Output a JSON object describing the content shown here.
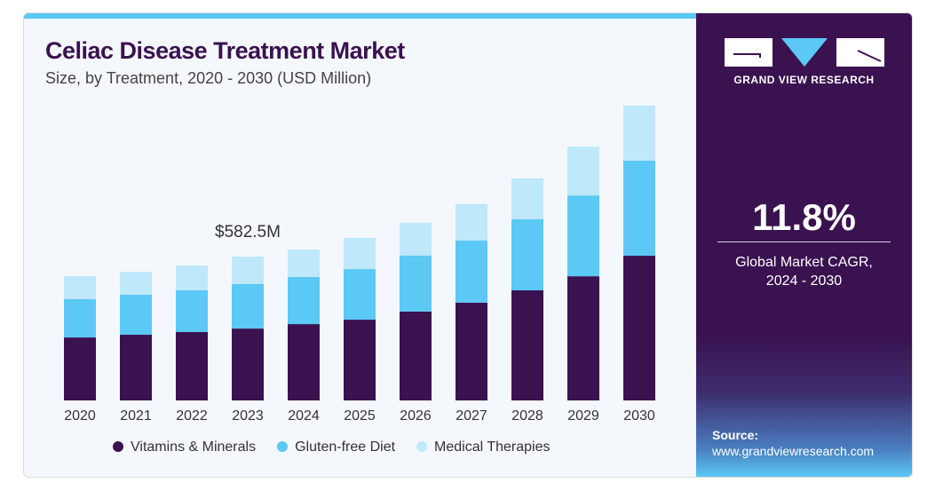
{
  "header": {
    "title": "Celiac Disease Treatment Market",
    "subtitle": "Size, by Treatment, 2020 - 2030 (USD Million)"
  },
  "side": {
    "brand": "GRAND VIEW RESEARCH",
    "cagr": "11.8%",
    "cagr_label_1": "Global Market CAGR,",
    "cagr_label_2": "2024 - 2030",
    "source_label": "Source:",
    "source_url": "www.grandviewresearch.com"
  },
  "colors": {
    "dark": "#3a1250",
    "mid": "#5bc8f5",
    "light": "#bfe8fb"
  },
  "chart_data": {
    "type": "bar",
    "stacked": true,
    "title": "Celiac Disease Treatment Market",
    "subtitle": "Size, by Treatment, 2020 - 2030 (USD Million)",
    "categories": [
      "2020",
      "2021",
      "2022",
      "2023",
      "2024",
      "2025",
      "2026",
      "2027",
      "2028",
      "2029",
      "2030"
    ],
    "series": [
      {
        "name": "Vitamins & Minerals",
        "values": [
          255,
          266,
          277,
          291,
          309,
          327,
          360,
          396,
          446,
          503,
          586
        ]
      },
      {
        "name": "Gluten-free Diet",
        "values": [
          155,
          162,
          169,
          180,
          191,
          205,
          227,
          252,
          288,
          327,
          385
        ]
      },
      {
        "name": "Medical Therapies",
        "values": [
          93,
          93,
          101,
          111.5,
          111,
          126,
          133,
          147,
          165,
          198,
          223
        ]
      }
    ],
    "annotation": {
      "category": "2023",
      "text": "$582.5M"
    },
    "ylim": [
      0,
      1250
    ],
    "legend": "bottom"
  }
}
